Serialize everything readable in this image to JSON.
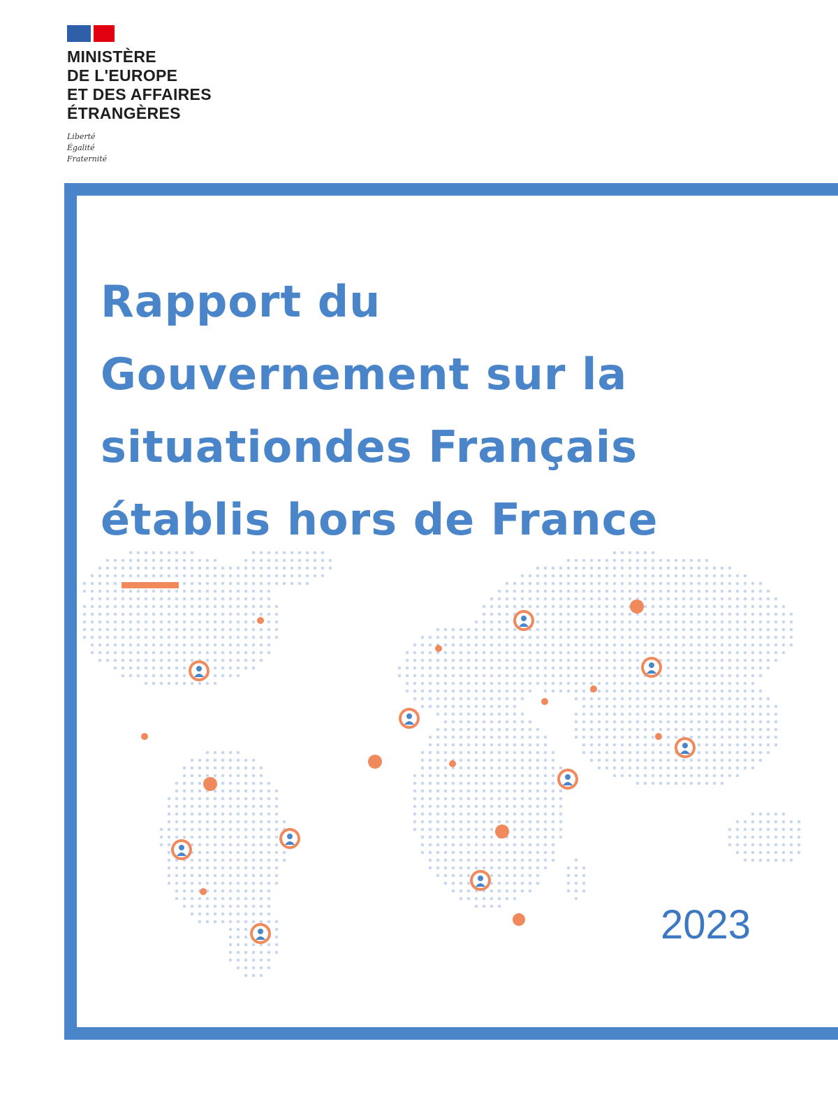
{
  "header": {
    "ministry_lines": [
      "MINISTÈRE",
      "DE L'EUROPE",
      "ET DES AFFAIRES",
      "ÉTRANGÈRES"
    ],
    "motto_lines": [
      "Liberté",
      "Égalité",
      "Fraternité"
    ]
  },
  "cover": {
    "title_lines": [
      "Rapport du",
      "Gouvernement sur la",
      "situationdes Français",
      "établis hors de France"
    ],
    "year": "2023"
  },
  "colors": {
    "frame": "#4a85c9",
    "title": "#4a85c9",
    "map_dots": "#c8d6ee",
    "marker": "#f08a5d",
    "person": "#4a85c9"
  },
  "icons": [
    "person-marker-icon",
    "location-dot-icon",
    "world-map-icon"
  ]
}
